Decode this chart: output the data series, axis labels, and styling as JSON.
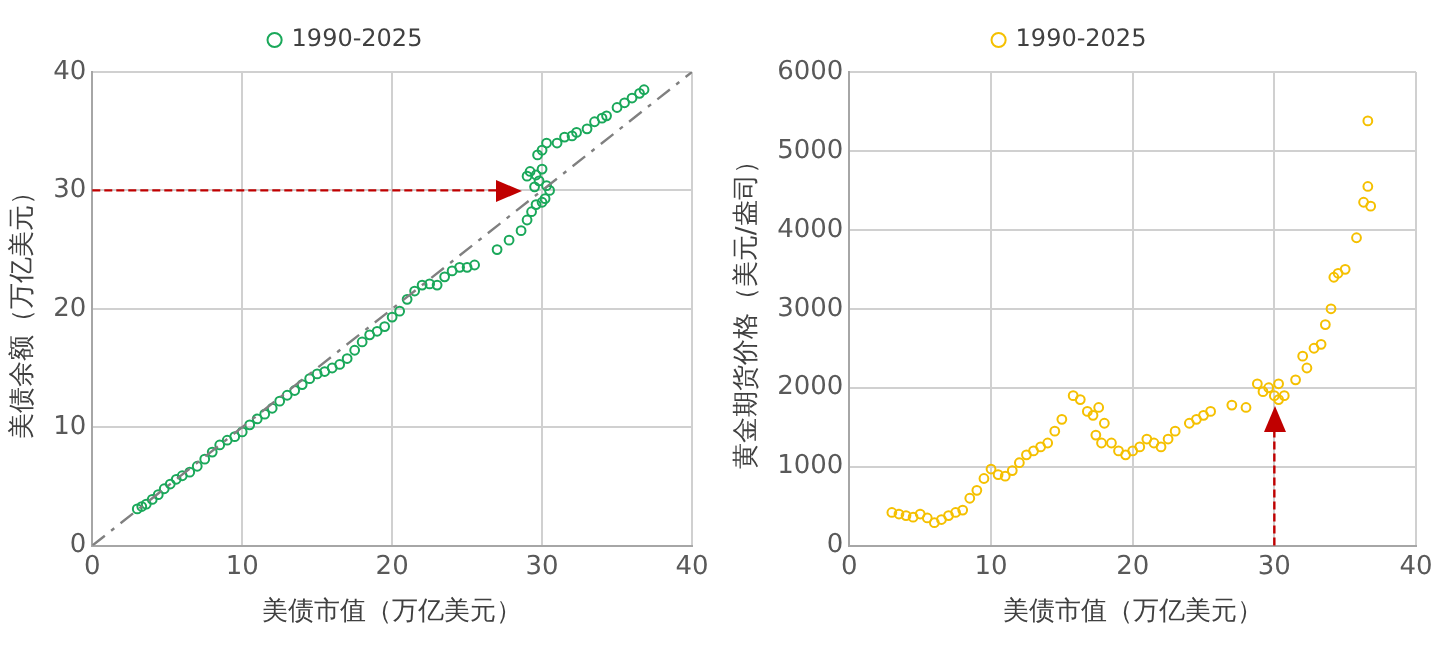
{
  "chart_data": [
    {
      "type": "scatter",
      "xlabel": "美债市值（万亿美元）",
      "ylabel": "美债余额（万亿美元）",
      "xlim": [
        0,
        40
      ],
      "ylim": [
        0,
        40
      ],
      "xticks": [
        0,
        10,
        20,
        30,
        40
      ],
      "yticks": [
        0,
        10,
        20,
        30,
        40
      ],
      "grid": true,
      "legend": "top",
      "marker": "circle",
      "series": [
        {
          "name": "1990-2025",
          "color": "#1aa85a",
          "x": [
            3,
            3.3,
            3.6,
            4,
            4.4,
            4.8,
            5.2,
            5.6,
            6,
            6.5,
            7,
            7.5,
            8,
            8.5,
            9,
            9.5,
            10,
            10.5,
            11,
            11.5,
            12,
            12.5,
            13,
            13.5,
            14,
            14.5,
            15,
            15.5,
            16,
            16.5,
            17,
            17.5,
            18,
            18.5,
            19,
            19.5,
            20,
            20.5,
            21,
            21.5,
            22,
            22.5,
            23,
            23.5,
            24,
            24.5,
            25,
            25.5,
            27,
            27.8,
            28.6,
            29,
            29.3,
            29.6,
            30,
            30.5,
            30.2,
            29,
            29.2,
            29.6,
            30,
            29.8,
            30.3,
            29.5,
            29.7,
            30,
            30.3,
            31,
            31.5,
            32,
            32.3,
            33,
            33.5,
            34,
            34.3,
            35,
            35.5,
            36,
            36.5,
            36.8
          ],
          "values": [
            3.1,
            3.3,
            3.5,
            3.9,
            4.3,
            4.8,
            5.2,
            5.6,
            5.9,
            6.2,
            6.7,
            7.3,
            7.9,
            8.5,
            8.9,
            9.2,
            9.6,
            10.2,
            10.7,
            11.1,
            11.6,
            12.2,
            12.7,
            13.1,
            13.6,
            14.1,
            14.5,
            14.7,
            15,
            15.3,
            15.8,
            16.5,
            17.2,
            17.8,
            18.1,
            18.5,
            19.3,
            19.8,
            20.8,
            21.5,
            22,
            22.1,
            22,
            22.7,
            23.2,
            23.5,
            23.5,
            23.7,
            25,
            25.8,
            26.6,
            27.5,
            28.2,
            28.8,
            29,
            30,
            29.3,
            31.2,
            31.6,
            31.3,
            31.8,
            30.8,
            30.4,
            30.3,
            33,
            33.4,
            34,
            34,
            34.5,
            34.6,
            34.9,
            35.2,
            35.8,
            36.1,
            36.3,
            37,
            37.4,
            37.8,
            38.2,
            38.5
          ]
        },
        {
          "type": "line",
          "color": "#808080",
          "line_style": "dashed",
          "marker": "none",
          "x": [
            0,
            40
          ],
          "values": [
            0,
            40
          ]
        }
      ],
      "ref_lines": [
        {
          "axis": "y",
          "value": 30,
          "color": "#c00000",
          "line_style": "dashed"
        }
      ]
    },
    {
      "type": "scatter",
      "xlabel": "美债市值（万亿美元）",
      "ylabel": "黄金期货价格（美元/盎司）",
      "xlim": [
        0,
        40
      ],
      "ylim": [
        0,
        6000
      ],
      "xticks": [
        0,
        10,
        20,
        30,
        40
      ],
      "yticks": [
        0,
        1000,
        2000,
        3000,
        4000,
        5000,
        6000
      ],
      "grid": true,
      "legend": "top",
      "marker": "circle",
      "series": [
        {
          "name": "1990-2025",
          "color": "#f5c000",
          "x": [
            3,
            3.5,
            4,
            4.5,
            5,
            5.5,
            6,
            6.5,
            7,
            7.5,
            8,
            8.5,
            9,
            9.5,
            10,
            10.5,
            11,
            11.5,
            12,
            12.5,
            13,
            13.5,
            14,
            14.5,
            15,
            15.8,
            16.3,
            16.8,
            17.2,
            17.6,
            17.4,
            17.8,
            18,
            18.5,
            19,
            19.5,
            20,
            20.5,
            21,
            21.5,
            22,
            22.5,
            23,
            24,
            24.5,
            25,
            25.5,
            27,
            28,
            28.8,
            29.2,
            29.6,
            30,
            30.3,
            30.7,
            30.3,
            31.5,
            32,
            32.3,
            32.8,
            33.3,
            33.6,
            34,
            34.2,
            34.5,
            35,
            35.8,
            36.3,
            36.6,
            36.8,
            36.6
          ],
          "values": [
            420,
            400,
            380,
            360,
            400,
            350,
            290,
            330,
            380,
            420,
            450,
            600,
            700,
            850,
            970,
            900,
            880,
            950,
            1050,
            1150,
            1200,
            1250,
            1300,
            1450,
            1600,
            1900,
            1850,
            1700,
            1650,
            1750,
            1400,
            1300,
            1550,
            1300,
            1200,
            1150,
            1200,
            1250,
            1350,
            1300,
            1250,
            1350,
            1450,
            1550,
            1600,
            1650,
            1700,
            1780,
            1750,
            2050,
            1950,
            2000,
            1900,
            1850,
            1900,
            2050,
            2100,
            2400,
            2250,
            2500,
            2550,
            2800,
            3000,
            3400,
            3450,
            3500,
            3900,
            4350,
            4550,
            4300,
            5380
          ]
        }
      ],
      "ref_lines": [
        {
          "axis": "x",
          "value": 30,
          "color": "#c00000",
          "line_style": "dashed"
        }
      ]
    }
  ]
}
